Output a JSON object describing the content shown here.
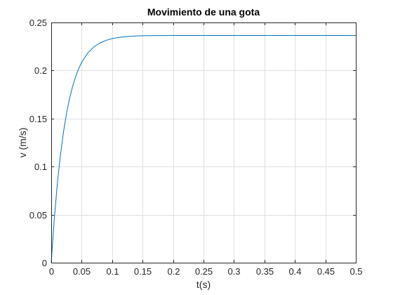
{
  "chart_data": {
    "type": "line",
    "title": "Movimiento de una gota",
    "xlabel": "t(s)",
    "ylabel": "v (m/s)",
    "xlim": [
      0,
      0.5
    ],
    "ylim": [
      0,
      0.25
    ],
    "grid": true,
    "x_ticks": [
      "0",
      "0.05",
      "0.1",
      "0.15",
      "0.2",
      "0.25",
      "0.3",
      "0.35",
      "0.4",
      "0.45",
      "0.5"
    ],
    "y_ticks": [
      "0",
      "0.05",
      "0.1",
      "0.15",
      "0.2",
      "0.25"
    ],
    "series": [
      {
        "color": "#0072bd",
        "x": [
          0,
          0.005,
          0.01,
          0.015,
          0.02,
          0.025,
          0.03,
          0.035,
          0.04,
          0.045,
          0.05,
          0.06,
          0.07,
          0.08,
          0.09,
          0.1,
          0.11,
          0.12,
          0.13,
          0.14,
          0.15,
          0.175,
          0.2,
          0.25,
          0.3,
          0.35,
          0.4,
          0.45,
          0.5
        ],
        "y": [
          0,
          0.0453,
          0.082,
          0.1116,
          0.1356,
          0.155,
          0.1706,
          0.1833,
          0.1935,
          0.2018,
          0.2085,
          0.2182,
          0.2246,
          0.2287,
          0.2314,
          0.2332,
          0.2344,
          0.2351,
          0.2356,
          0.236,
          0.2362,
          0.2364,
          0.2365,
          0.2365,
          0.2365,
          0.2365,
          0.2365,
          0.2365,
          0.2365
        ]
      }
    ]
  }
}
